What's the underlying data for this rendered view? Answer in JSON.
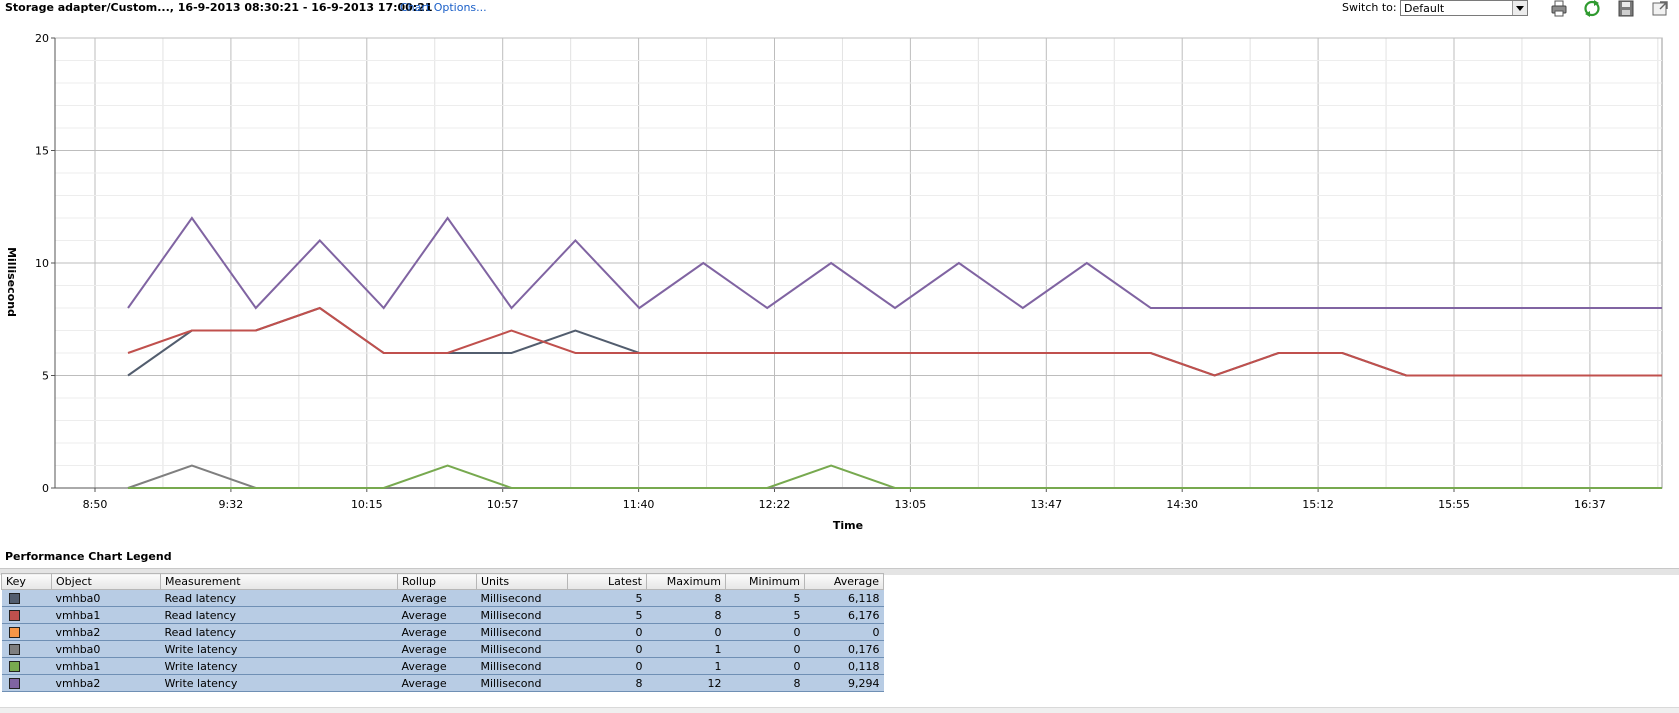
{
  "header": {
    "title": "Storage adapter/Custom..., 16-9-2013 08:30:21 - 16-9-2013 17:00:21",
    "chart_options_link": "Chart Options...",
    "switch_to_label": "Switch to:",
    "switch_to_value": "Default",
    "toolbar_icons": [
      "print-icon",
      "refresh-icon",
      "save-icon",
      "popout-icon"
    ]
  },
  "chart_data": {
    "type": "line",
    "title": "",
    "xlabel": "Time",
    "ylabel": "Millisecond",
    "ylim": [
      0,
      20
    ],
    "y_ticks": [
      0,
      5,
      10,
      15,
      20
    ],
    "x_tick_labels": [
      "8:50",
      "9:32",
      "10:15",
      "10:57",
      "11:40",
      "12:22",
      "13:05",
      "13:47",
      "14:30",
      "15:12",
      "15:55",
      "16:37"
    ],
    "x": [
      1,
      2,
      3,
      4,
      5,
      6,
      7,
      8,
      9,
      10,
      11,
      12,
      13,
      14,
      15,
      16,
      17,
      18,
      19,
      20,
      21,
      22,
      23,
      24,
      25
    ],
    "grid": true,
    "series": [
      {
        "color": "#525d6e",
        "values": [
          5,
          7,
          7,
          8,
          6,
          6,
          6,
          7,
          6,
          6,
          6,
          6,
          6,
          6,
          6,
          6,
          6,
          5,
          6,
          6,
          5,
          5,
          5,
          5,
          5
        ]
      },
      {
        "color": "#c0504d",
        "values": [
          6,
          7,
          7,
          8,
          6,
          6,
          7,
          6,
          6,
          6,
          6,
          6,
          6,
          6,
          6,
          6,
          6,
          5,
          6,
          6,
          5,
          5,
          5,
          5,
          5
        ]
      },
      {
        "color": "#f79646",
        "values": [
          0,
          0,
          0,
          0,
          0,
          0,
          0,
          0,
          0,
          0,
          0,
          0,
          0,
          0,
          0,
          0,
          0,
          0,
          0,
          0,
          0,
          0,
          0,
          0,
          0
        ]
      },
      {
        "color": "#7f7f7f",
        "values": [
          0,
          1,
          0,
          0,
          0,
          0,
          0,
          0,
          0,
          0,
          0,
          0,
          0,
          0,
          0,
          0,
          0,
          0,
          0,
          0,
          0,
          0,
          0,
          0,
          0
        ]
      },
      {
        "color": "#77a94f",
        "values": [
          0,
          0,
          0,
          0,
          0,
          1,
          0,
          0,
          0,
          0,
          0,
          1,
          0,
          0,
          0,
          0,
          0,
          0,
          0,
          0,
          0,
          0,
          0,
          0,
          0
        ]
      },
      {
        "color": "#8064a2",
        "values": [
          8,
          12,
          8,
          11,
          8,
          12,
          8,
          11,
          8,
          10,
          8,
          10,
          8,
          10,
          8,
          10,
          8,
          8,
          8,
          8,
          8,
          8,
          8,
          8,
          8
        ]
      }
    ]
  },
  "legend": {
    "title": "Performance Chart Legend",
    "columns": [
      "Key",
      "Object",
      "Measurement",
      "Rollup",
      "Units",
      "Latest",
      "Maximum",
      "Minimum",
      "Average"
    ],
    "rows": [
      {
        "color": "#525d6e",
        "object": "vmhba0",
        "measurement": "Read latency",
        "rollup": "Average",
        "units": "Millisecond",
        "latest": "5",
        "maximum": "8",
        "minimum": "5",
        "average": "6,118"
      },
      {
        "color": "#c0504d",
        "object": "vmhba1",
        "measurement": "Read latency",
        "rollup": "Average",
        "units": "Millisecond",
        "latest": "5",
        "maximum": "8",
        "minimum": "5",
        "average": "6,176"
      },
      {
        "color": "#f79646",
        "object": "vmhba2",
        "measurement": "Read latency",
        "rollup": "Average",
        "units": "Millisecond",
        "latest": "0",
        "maximum": "0",
        "minimum": "0",
        "average": "0"
      },
      {
        "color": "#7f7f7f",
        "object": "vmhba0",
        "measurement": "Write latency",
        "rollup": "Average",
        "units": "Millisecond",
        "latest": "0",
        "maximum": "1",
        "minimum": "0",
        "average": "0,176"
      },
      {
        "color": "#77a94f",
        "object": "vmhba1",
        "measurement": "Write latency",
        "rollup": "Average",
        "units": "Millisecond",
        "latest": "0",
        "maximum": "1",
        "minimum": "0",
        "average": "0,118"
      },
      {
        "color": "#8064a2",
        "object": "vmhba2",
        "measurement": "Write latency",
        "rollup": "Average",
        "units": "Millisecond",
        "latest": "8",
        "maximum": "12",
        "minimum": "8",
        "average": "9,294"
      }
    ]
  }
}
